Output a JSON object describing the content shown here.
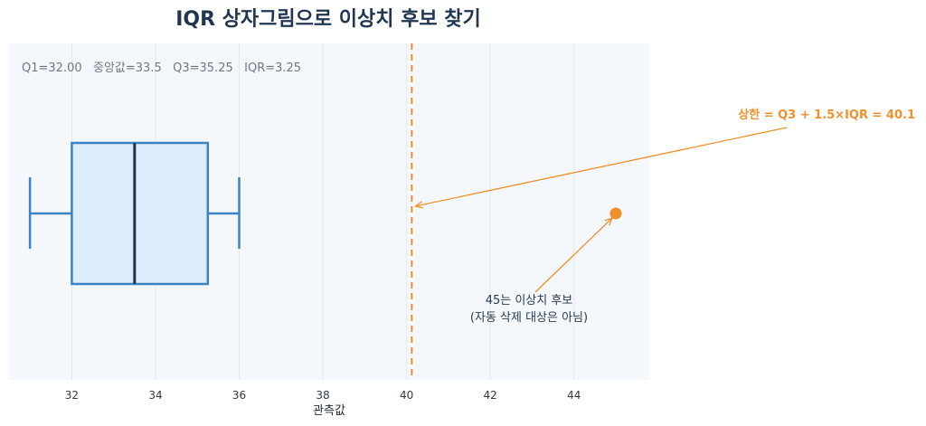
{
  "chart_data": {
    "type": "box",
    "title": "IQR 상자그림으로 이상치 후보 찾기",
    "xlabel": "관측값",
    "xlim": [
      30.5,
      45.8
    ],
    "xticks": [
      32,
      34,
      36,
      38,
      40,
      42,
      44
    ],
    "stats_line": "Q1=32.00   중앙값=33.5   Q3=35.25   IQR=3.25",
    "box": {
      "whisker_low": 31,
      "q1": 32.0,
      "median": 33.5,
      "q3": 35.25,
      "whisker_high": 36
    },
    "upper_fence": 40.125,
    "outlier": {
      "x": 45
    },
    "annotations": {
      "fence_label": "상한 = Q3 + 1.5×IQR = 40.1",
      "outlier_label_line1": "45는 이상치 후보",
      "outlier_label_line2": "(자동 삭제 대상은 아님)"
    },
    "colors": {
      "plot_bg": "#f4f8fc",
      "grid": "#e3e8ee",
      "box_fill": "#dcecfb",
      "box_stroke": "#3c85c5",
      "median": "#1f3550",
      "fence": "#f0902a",
      "outlier": "#f0902a",
      "annot_dark": "#2a3a4f"
    }
  }
}
